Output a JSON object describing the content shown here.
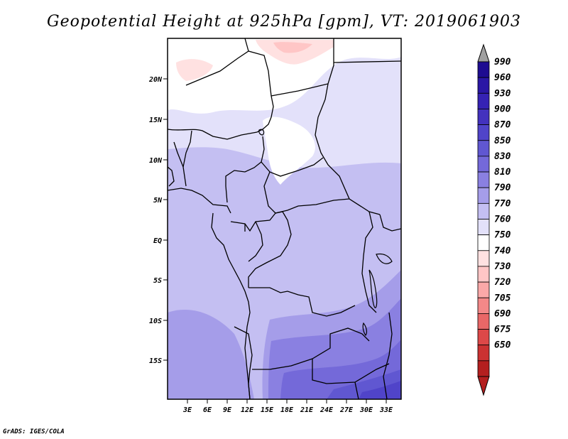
{
  "title": "Geopotential Height at 925hPa [gpm], VT: 2019061903",
  "credit": "GrADS: IGES/COLA",
  "map": {
    "lat_labels": [
      "20N",
      "15N",
      "10N",
      "5N",
      "EQ",
      "5S",
      "10S",
      "15S"
    ],
    "lon_labels": [
      "3E",
      "6E",
      "9E",
      "12E",
      "15E",
      "18E",
      "21E",
      "24E",
      "27E",
      "30E",
      "33E"
    ]
  },
  "colorbar": {
    "levels": [
      "990",
      "960",
      "930",
      "900",
      "870",
      "850",
      "830",
      "810",
      "790",
      "770",
      "760",
      "750",
      "740",
      "730",
      "720",
      "705",
      "690",
      "675",
      "650"
    ],
    "colors": {
      "top_triangle": "#a0a0a0",
      "bottom_triangle": "#b41f1f",
      "blue_shades": [
        "#1e0c91",
        "#2a17a5",
        "#3522b4",
        "#4332be",
        "#5044c9",
        "#6057d1",
        "#7469d9",
        "#8a80e1",
        "#a59de9",
        "#c4bff2",
        "#e3e1fa"
      ],
      "neutral": "#ffffff",
      "red_shades": [
        "#ffe1e1",
        "#ffc6c6",
        "#fba8a8",
        "#f38888",
        "#e96767",
        "#dd4848",
        "#cb3232",
        "#b41f1f"
      ]
    }
  }
}
